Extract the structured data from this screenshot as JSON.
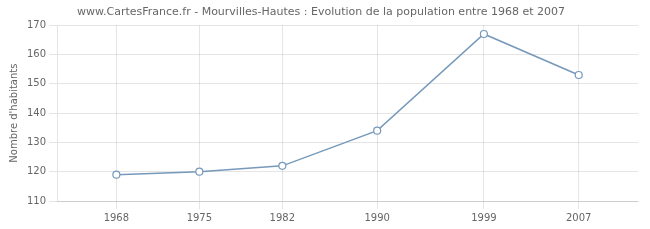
{
  "chart_data": {
    "type": "line",
    "title": "www.CartesFrance.fr - Mourvilles-Hautes : Evolution de la population entre 1968 et 2007",
    "ylabel": "Nombre d'habitants",
    "x": [
      1968,
      1975,
      1982,
      1990,
      1999,
      2007
    ],
    "values": [
      119,
      120,
      122,
      134,
      167,
      153
    ],
    "color": "#7799bb",
    "marker": "circle",
    "xlim": [
      1963,
      2012
    ],
    "xticks": [
      1968,
      1975,
      1982,
      1990,
      1999,
      2007
    ],
    "ylim": [
      110,
      170
    ],
    "yticks": [
      110,
      120,
      130,
      140,
      150,
      160,
      170
    ],
    "grid": true
  }
}
